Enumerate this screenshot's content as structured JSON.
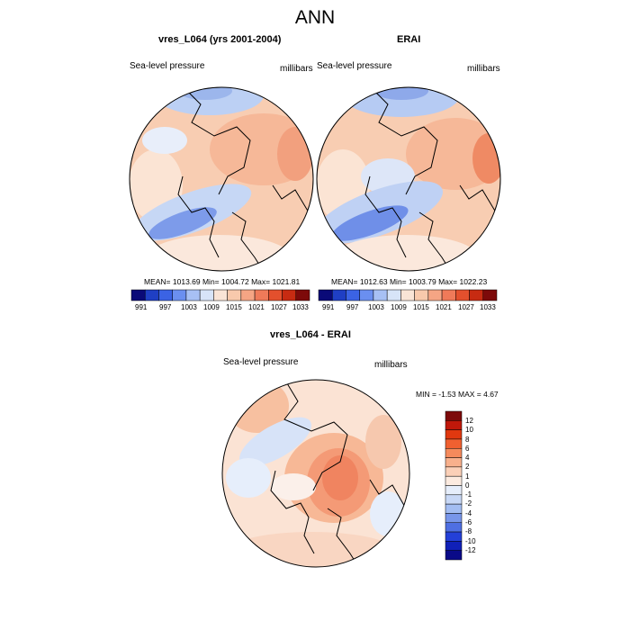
{
  "figure": {
    "title": "ANN"
  },
  "panels": [
    {
      "title": "vres_L064 (yrs 2001-2004)",
      "variable": "Sea-level pressure",
      "units": "millibars",
      "stats": "MEAN= 1013.69  Min= 1004.72  Max= 1021.81"
    },
    {
      "title": "ERAI",
      "variable": "Sea-level pressure",
      "units": "millibars",
      "stats": "MEAN= 1012.63  Min= 1003.79  Max= 1022.23"
    },
    {
      "title": "vres_L064 - ERAI",
      "variable": "Sea-level pressure",
      "units": "millibars",
      "stats": "MIN =  -1.53 MAX =   4.67"
    }
  ],
  "colorbar_top": {
    "colors": [
      "#0a0a78",
      "#1f3fc4",
      "#3b63e4",
      "#6a8ff0",
      "#a7c0f4",
      "#d7e4f8",
      "#f9e4d6",
      "#f8c9ac",
      "#f5a584",
      "#ef7a59",
      "#e3502d",
      "#c72b12",
      "#7d0a0a"
    ],
    "tick_labels": [
      "991",
      "997",
      "1003",
      "1009",
      "1015",
      "1021",
      "1027",
      "1033"
    ]
  },
  "colorbar_diff": {
    "colors": [
      "#7d0a0a",
      "#c0180a",
      "#e0380f",
      "#f06030",
      "#f58a5c",
      "#f8b08c",
      "#fbd0b8",
      "#fcebe0",
      "#e6eefb",
      "#c8d8f6",
      "#a3bdf2",
      "#7896ea",
      "#4f6fe2",
      "#2440d8",
      "#1020b8",
      "#0a0a88"
    ],
    "tick_labels": [
      "12",
      "10",
      "8",
      "6",
      "4",
      "2",
      "1",
      "0",
      "-1",
      "-2",
      "-4",
      "-6",
      "-8",
      "-10",
      "-12"
    ]
  }
}
